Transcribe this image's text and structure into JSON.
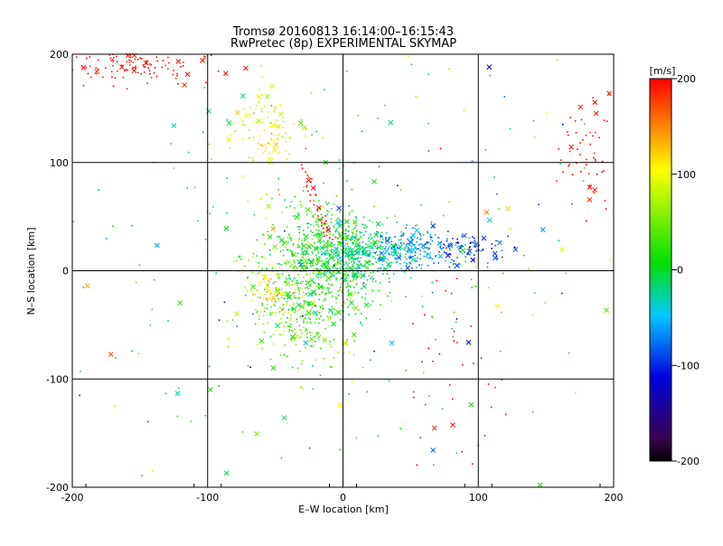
{
  "chart_data": {
    "type": "scatter",
    "title": "Tromsø 20160813 16:14:00–16:15:43",
    "subtitle": "RwPretec (8p) EXPERIMENTAL SKYMAP",
    "xlabel": "E–W location [km]",
    "ylabel": "N–S location [km]",
    "xlim": [
      -200,
      200
    ],
    "ylim": [
      -200,
      200
    ],
    "x_ticks": [
      "-200",
      "-100",
      "0",
      "100",
      "200"
    ],
    "y_ticks": [
      "-200",
      "-100",
      "0",
      "100",
      "200"
    ],
    "grid": true,
    "grid_values": [
      -100,
      0,
      100
    ],
    "colorbar": {
      "label": "[m/s]",
      "range": [
        -200,
        200
      ],
      "ticks": [
        "-200",
        "-100",
        "0",
        "100",
        "200"
      ],
      "colormap": "rainbow (black-purple-blue-cyan-green-yellow-red)"
    },
    "marker_types": [
      "dot",
      "x"
    ],
    "clusters": [
      {
        "cx": -15,
        "cy": 5,
        "sx": 22,
        "sy": 28,
        "n": 650,
        "v": 15,
        "vs": 22
      },
      {
        "cx": 15,
        "cy": 15,
        "sx": 18,
        "sy": 12,
        "n": 320,
        "v": -25,
        "vs": 18
      },
      {
        "cx": 55,
        "cy": 20,
        "sx": 18,
        "sy": 9,
        "n": 200,
        "v": -70,
        "vs": 22
      },
      {
        "cx": 95,
        "cy": 20,
        "sx": 14,
        "sy": 7,
        "n": 70,
        "v": -115,
        "vs": 20
      },
      {
        "cx": -55,
        "cy": 130,
        "sx": 14,
        "sy": 18,
        "n": 110,
        "v": 95,
        "vs": 25
      },
      {
        "cx": -150,
        "cy": 190,
        "sx": 28,
        "sy": 8,
        "n": 130,
        "v": 195,
        "vs": 10
      },
      {
        "cx": -35,
        "cy": -35,
        "sx": 18,
        "sy": 30,
        "n": 230,
        "v": 40,
        "vs": 30
      },
      {
        "cx": -55,
        "cy": -15,
        "sx": 10,
        "sy": 12,
        "n": 70,
        "v": 110,
        "vs": 25
      },
      {
        "cx": 185,
        "cy": 110,
        "sx": 14,
        "sy": 25,
        "n": 60,
        "v": 200,
        "vs": 8
      },
      {
        "cx": 85,
        "cy": -75,
        "sx": 20,
        "sy": 70,
        "n": 40,
        "v": 200,
        "vs": 10
      },
      {
        "cx": 0,
        "cy": 0,
        "sx": 110,
        "sy": 100,
        "n": 260,
        "v": 0,
        "vs": 70
      }
    ],
    "line_features": [
      {
        "from": [
          -30,
          100
        ],
        "to": [
          -10,
          30
        ],
        "n": 40,
        "v": 195
      }
    ]
  }
}
